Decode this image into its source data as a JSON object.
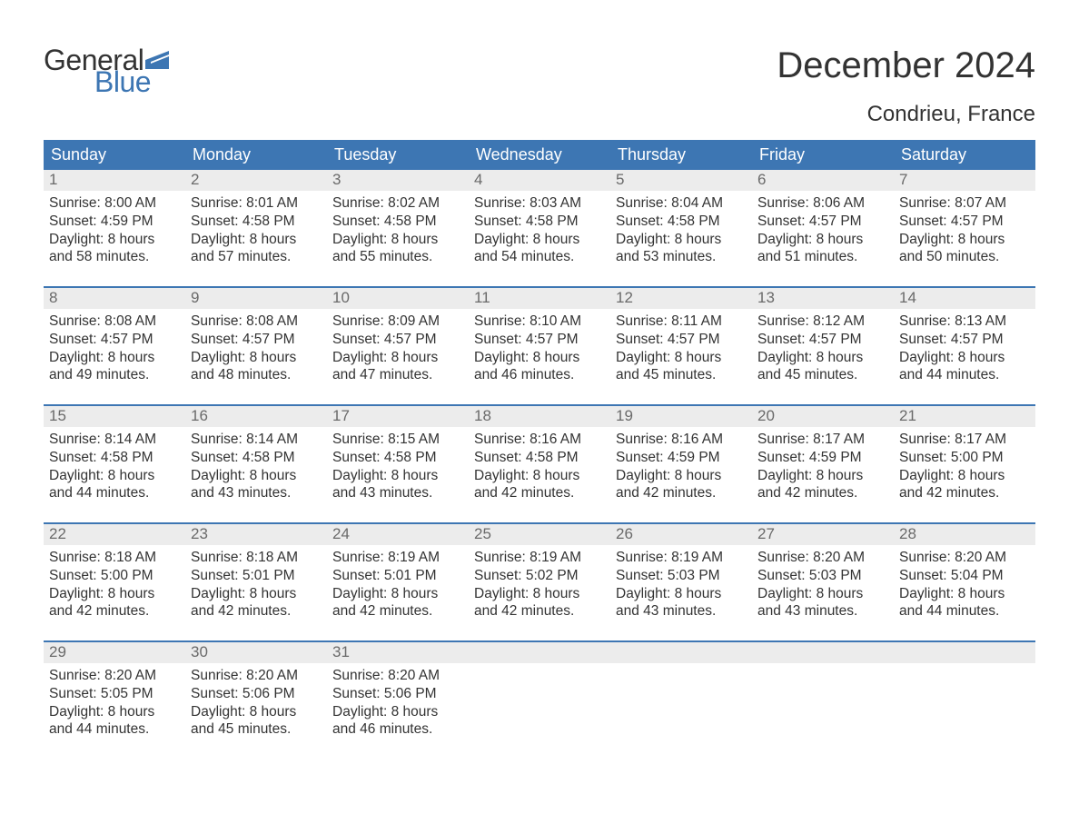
{
  "logo": {
    "text1": "General",
    "text2": "Blue",
    "flag_color": "#3d76b3"
  },
  "title": "December 2024",
  "subtitle": "Condrieu, France",
  "colors": {
    "header_bg": "#3d76b3",
    "header_text": "#ffffff",
    "daynum_bg": "#ececec",
    "daynum_text": "#6a6a6a",
    "body_text": "#333333",
    "week_border": "#3d76b3",
    "page_bg": "#ffffff"
  },
  "fonts": {
    "title_size": 40,
    "subtitle_size": 24,
    "dayheader_size": 18,
    "daynum_size": 17,
    "body_size": 15.5
  },
  "day_headers": [
    "Sunday",
    "Monday",
    "Tuesday",
    "Wednesday",
    "Thursday",
    "Friday",
    "Saturday"
  ],
  "weeks": [
    [
      {
        "num": "1",
        "sunrise": "8:00 AM",
        "sunset": "4:59 PM",
        "daylight_h": "8",
        "daylight_m": "58"
      },
      {
        "num": "2",
        "sunrise": "8:01 AM",
        "sunset": "4:58 PM",
        "daylight_h": "8",
        "daylight_m": "57"
      },
      {
        "num": "3",
        "sunrise": "8:02 AM",
        "sunset": "4:58 PM",
        "daylight_h": "8",
        "daylight_m": "55"
      },
      {
        "num": "4",
        "sunrise": "8:03 AM",
        "sunset": "4:58 PM",
        "daylight_h": "8",
        "daylight_m": "54"
      },
      {
        "num": "5",
        "sunrise": "8:04 AM",
        "sunset": "4:58 PM",
        "daylight_h": "8",
        "daylight_m": "53"
      },
      {
        "num": "6",
        "sunrise": "8:06 AM",
        "sunset": "4:57 PM",
        "daylight_h": "8",
        "daylight_m": "51"
      },
      {
        "num": "7",
        "sunrise": "8:07 AM",
        "sunset": "4:57 PM",
        "daylight_h": "8",
        "daylight_m": "50"
      }
    ],
    [
      {
        "num": "8",
        "sunrise": "8:08 AM",
        "sunset": "4:57 PM",
        "daylight_h": "8",
        "daylight_m": "49"
      },
      {
        "num": "9",
        "sunrise": "8:08 AM",
        "sunset": "4:57 PM",
        "daylight_h": "8",
        "daylight_m": "48"
      },
      {
        "num": "10",
        "sunrise": "8:09 AM",
        "sunset": "4:57 PM",
        "daylight_h": "8",
        "daylight_m": "47"
      },
      {
        "num": "11",
        "sunrise": "8:10 AM",
        "sunset": "4:57 PM",
        "daylight_h": "8",
        "daylight_m": "46"
      },
      {
        "num": "12",
        "sunrise": "8:11 AM",
        "sunset": "4:57 PM",
        "daylight_h": "8",
        "daylight_m": "45"
      },
      {
        "num": "13",
        "sunrise": "8:12 AM",
        "sunset": "4:57 PM",
        "daylight_h": "8",
        "daylight_m": "45"
      },
      {
        "num": "14",
        "sunrise": "8:13 AM",
        "sunset": "4:57 PM",
        "daylight_h": "8",
        "daylight_m": "44"
      }
    ],
    [
      {
        "num": "15",
        "sunrise": "8:14 AM",
        "sunset": "4:58 PM",
        "daylight_h": "8",
        "daylight_m": "44"
      },
      {
        "num": "16",
        "sunrise": "8:14 AM",
        "sunset": "4:58 PM",
        "daylight_h": "8",
        "daylight_m": "43"
      },
      {
        "num": "17",
        "sunrise": "8:15 AM",
        "sunset": "4:58 PM",
        "daylight_h": "8",
        "daylight_m": "43"
      },
      {
        "num": "18",
        "sunrise": "8:16 AM",
        "sunset": "4:58 PM",
        "daylight_h": "8",
        "daylight_m": "42"
      },
      {
        "num": "19",
        "sunrise": "8:16 AM",
        "sunset": "4:59 PM",
        "daylight_h": "8",
        "daylight_m": "42"
      },
      {
        "num": "20",
        "sunrise": "8:17 AM",
        "sunset": "4:59 PM",
        "daylight_h": "8",
        "daylight_m": "42"
      },
      {
        "num": "21",
        "sunrise": "8:17 AM",
        "sunset": "5:00 PM",
        "daylight_h": "8",
        "daylight_m": "42"
      }
    ],
    [
      {
        "num": "22",
        "sunrise": "8:18 AM",
        "sunset": "5:00 PM",
        "daylight_h": "8",
        "daylight_m": "42"
      },
      {
        "num": "23",
        "sunrise": "8:18 AM",
        "sunset": "5:01 PM",
        "daylight_h": "8",
        "daylight_m": "42"
      },
      {
        "num": "24",
        "sunrise": "8:19 AM",
        "sunset": "5:01 PM",
        "daylight_h": "8",
        "daylight_m": "42"
      },
      {
        "num": "25",
        "sunrise": "8:19 AM",
        "sunset": "5:02 PM",
        "daylight_h": "8",
        "daylight_m": "42"
      },
      {
        "num": "26",
        "sunrise": "8:19 AM",
        "sunset": "5:03 PM",
        "daylight_h": "8",
        "daylight_m": "43"
      },
      {
        "num": "27",
        "sunrise": "8:20 AM",
        "sunset": "5:03 PM",
        "daylight_h": "8",
        "daylight_m": "43"
      },
      {
        "num": "28",
        "sunrise": "8:20 AM",
        "sunset": "5:04 PM",
        "daylight_h": "8",
        "daylight_m": "44"
      }
    ],
    [
      {
        "num": "29",
        "sunrise": "8:20 AM",
        "sunset": "5:05 PM",
        "daylight_h": "8",
        "daylight_m": "44"
      },
      {
        "num": "30",
        "sunrise": "8:20 AM",
        "sunset": "5:06 PM",
        "daylight_h": "8",
        "daylight_m": "45"
      },
      {
        "num": "31",
        "sunrise": "8:20 AM",
        "sunset": "5:06 PM",
        "daylight_h": "8",
        "daylight_m": "46"
      },
      {
        "empty": true
      },
      {
        "empty": true
      },
      {
        "empty": true
      },
      {
        "empty": true
      }
    ]
  ],
  "labels": {
    "sunrise_prefix": "Sunrise: ",
    "sunset_prefix": "Sunset: ",
    "daylight_prefix": "Daylight: ",
    "hours_word": " hours",
    "and_word": "and ",
    "minutes_word": " minutes."
  }
}
